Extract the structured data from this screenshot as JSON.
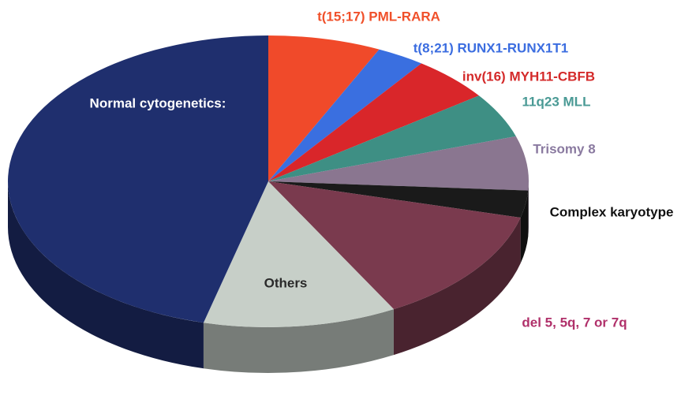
{
  "chart_data": {
    "type": "pie3d",
    "categories": [
      "t(15;17) PML-RARA",
      "t(8;21) RUNX1-RUNX1T1",
      "inv(16) MYH11-CBFB",
      "11q23 MLL",
      "Trisomy 8",
      "Complex karyotype",
      "del 5, 5q, 7 or 7q",
      "Others",
      "Normal cytogenetics:"
    ],
    "values": [
      7,
      3,
      5,
      5,
      6,
      3,
      13,
      12,
      46
    ],
    "colors": [
      "#f04a2a",
      "#3a6fe0",
      "#d9262a",
      "#3e8f84",
      "#8a7690",
      "#1a1a1a",
      "#7a3a4e",
      "#c7cfc8",
      "#1f2f6e"
    ],
    "label_colors": [
      "#f0502a",
      "#3b6de0",
      "#d42a2a",
      "#4a9a95",
      "#8a7aa0",
      "#111111",
      "#b0306a",
      "#2a2a2a",
      "#ffffff"
    ]
  }
}
